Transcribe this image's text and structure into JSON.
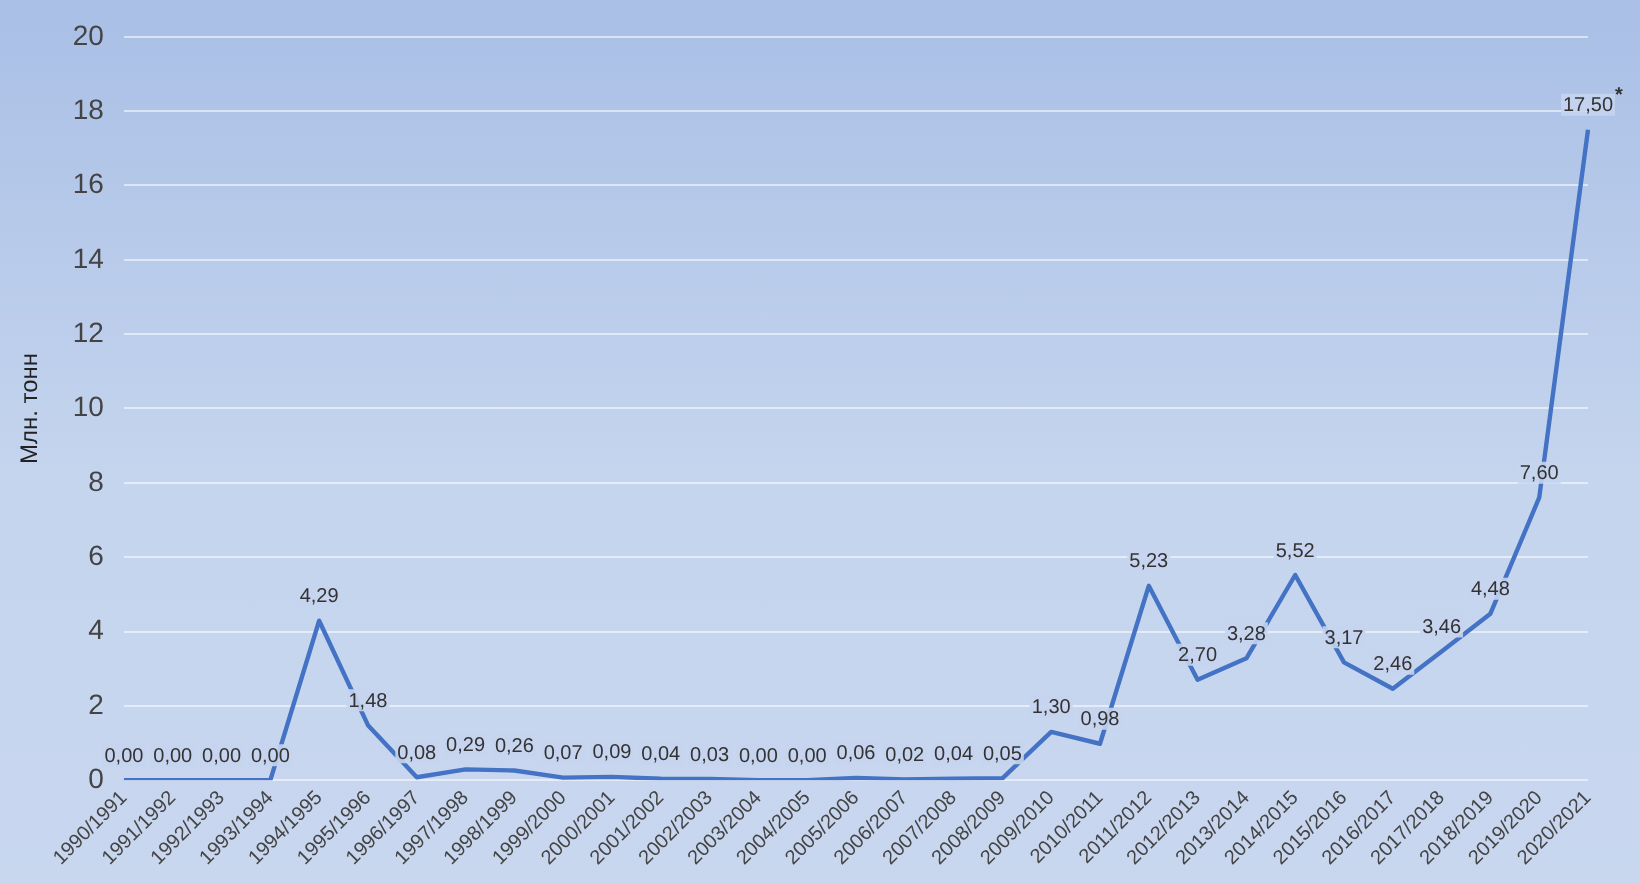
{
  "chart_data": {
    "type": "line",
    "ylabel": "Млн. тонн",
    "categories": [
      "1990/1991",
      "1991/1992",
      "1992/1993",
      "1993/1994",
      "1994/1995",
      "1995/1996",
      "1996/1997",
      "1997/1998",
      "1998/1999",
      "1999/2000",
      "2000/2001",
      "2001/2002",
      "2002/2003",
      "2003/2004",
      "2004/2005",
      "2005/2006",
      "2006/2007",
      "2007/2008",
      "2008/2009",
      "2009/2010",
      "2010/2011",
      "2011/2012",
      "2012/2013",
      "2013/2014",
      "2014/2015",
      "2015/2016",
      "2016/2017",
      "2017/2018",
      "2018/2019",
      "2019/2020",
      "2020/2021"
    ],
    "series": [
      {
        "color": "#4472c4",
        "values": [
          0,
          0,
          0,
          0,
          4.29,
          1.48,
          0.08,
          0.29,
          0.26,
          0.07,
          0.09,
          0.04,
          0.03,
          0,
          0,
          0.06,
          0.02,
          0.04,
          0.05,
          1.3,
          0.98,
          5.23,
          2.7,
          3.28,
          5.52,
          3.17,
          2.46,
          3.46,
          4.48,
          7.6,
          17.5
        ],
        "value_labels": [
          "0,00",
          "0,00",
          "0,00",
          "0,00",
          "4,29",
          "1,48",
          "0,08",
          "0,29",
          "0,26",
          "0,07",
          "0,09",
          "0,04",
          "0,03",
          "0,00",
          "0,00",
          "0,06",
          "0,02",
          "0,04",
          "0,05",
          "1,30",
          "0,98",
          "5,23",
          "2,70",
          "3,28",
          "5,52",
          "3,17",
          "2,46",
          "3,46",
          "4,48",
          "7,60",
          "17,50"
        ]
      }
    ],
    "ylim": [
      0,
      20
    ],
    "yticks": [
      0,
      2,
      4,
      6,
      8,
      10,
      12,
      14,
      16,
      18,
      20
    ],
    "grid": "y",
    "legend": false,
    "marker": "none",
    "line_style": "solid",
    "annotations": [
      {
        "text": "*",
        "x": "2020/2021",
        "y": 17.5
      }
    ]
  }
}
